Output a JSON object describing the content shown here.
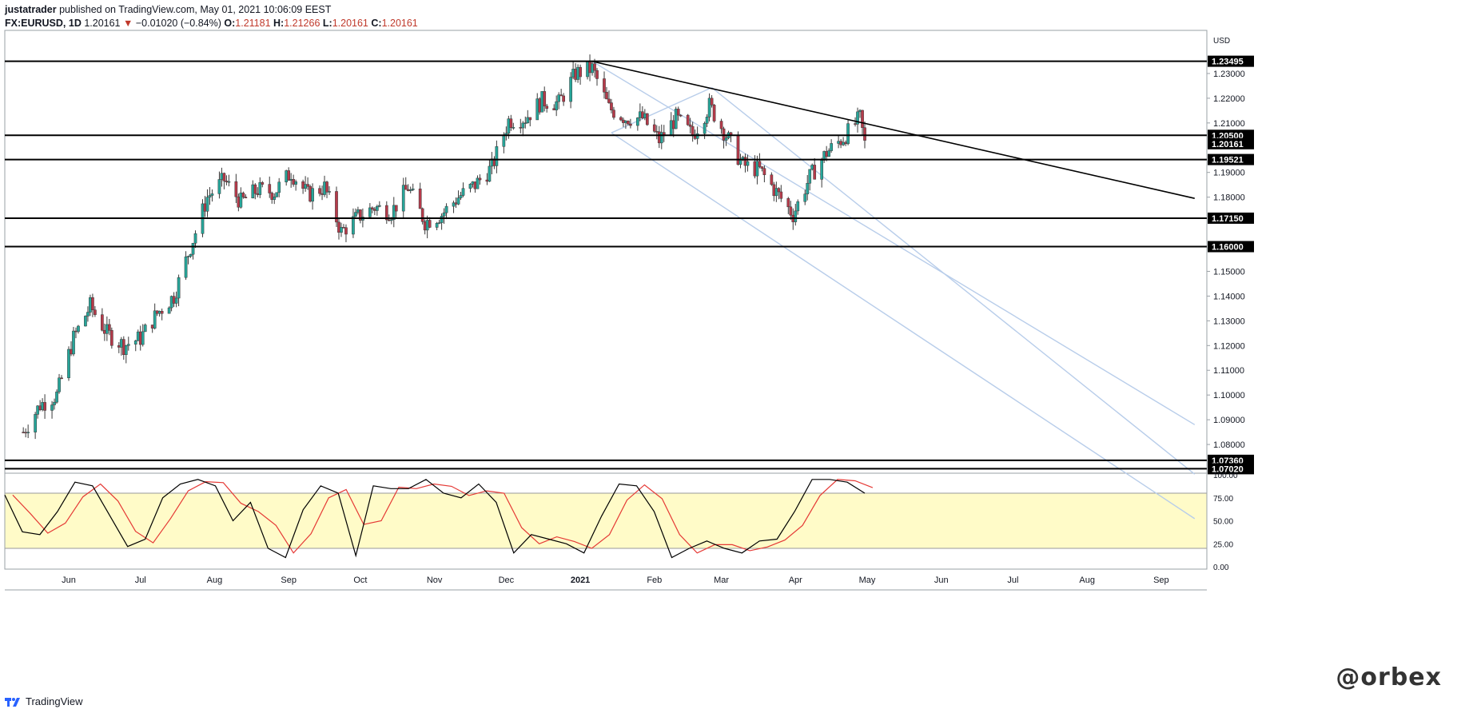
{
  "header": {
    "author": "justatrader",
    "published_text": "published on TradingView.com, May 01, 2021 10:06:09 EEST",
    "symbol": "FX:EURUSD, 1D",
    "last": "1.20161",
    "change_arrow": "▼",
    "change": "−0.01020 (−0.84%)",
    "ohlc": [
      {
        "label": "O:",
        "value": "1.21181"
      },
      {
        "label": "H:",
        "value": "1.21266"
      },
      {
        "label": "L:",
        "value": "1.20161"
      },
      {
        "label": "C:",
        "value": "1.20161"
      }
    ]
  },
  "footer": {
    "brand": "TradingView",
    "watermark": "@orbex",
    "logo_icon": "tradingview-logo-icon"
  },
  "colors": {
    "up": "#26a69a",
    "down": "#b53a4a",
    "channel": "#b8cdea",
    "stoch_k": "#000000",
    "stoch_d": "#e53935",
    "stoch_band": "#fffbc8"
  },
  "chart_data": [
    {
      "type": "candlestick",
      "currency": "USD",
      "x_ticks": [
        "Jun",
        "Jul",
        "Aug",
        "Sep",
        "Oct",
        "Nov",
        "Dec",
        "2021",
        "Feb",
        "Mar",
        "Apr",
        "May",
        "Jun",
        "Jul",
        "Aug",
        "Sep"
      ],
      "ylim": [
        1.07,
        1.24
      ],
      "y_ticks": [
        "1.23000",
        "1.22000",
        "1.21000",
        "1.19000",
        "1.18000",
        "1.15000",
        "1.14000",
        "1.13000",
        "1.12000",
        "1.11000",
        "1.10000",
        "1.09000",
        "1.08000"
      ],
      "horizontal_levels": [
        "1.23495",
        "1.20500",
        "1.19521",
        "1.17150",
        "1.16000",
        "1.07360",
        "1.07020"
      ],
      "current_price": "1.20161",
      "close_path": [
        {
          "date": "2020-05-13",
          "close": 1.085
        },
        {
          "date": "2020-05-20",
          "close": 1.096
        },
        {
          "date": "2020-05-27",
          "close": 1.1
        },
        {
          "date": "2020-06-03",
          "close": 1.123
        },
        {
          "date": "2020-06-10",
          "close": 1.136
        },
        {
          "date": "2020-06-17",
          "close": 1.125
        },
        {
          "date": "2020-06-24",
          "close": 1.12
        },
        {
          "date": "2020-07-01",
          "close": 1.123
        },
        {
          "date": "2020-07-08",
          "close": 1.133
        },
        {
          "date": "2020-07-15",
          "close": 1.14
        },
        {
          "date": "2020-07-22",
          "close": 1.16
        },
        {
          "date": "2020-07-29",
          "close": 1.18
        },
        {
          "date": "2020-08-05",
          "close": 1.187
        },
        {
          "date": "2020-08-12",
          "close": 1.178
        },
        {
          "date": "2020-08-19",
          "close": 1.183
        },
        {
          "date": "2020-08-26",
          "close": 1.182
        },
        {
          "date": "2020-09-02",
          "close": 1.19
        },
        {
          "date": "2020-09-09",
          "close": 1.181
        },
        {
          "date": "2020-09-16",
          "close": 1.184
        },
        {
          "date": "2020-09-23",
          "close": 1.166
        },
        {
          "date": "2020-09-30",
          "close": 1.172
        },
        {
          "date": "2020-10-07",
          "close": 1.176
        },
        {
          "date": "2020-10-14",
          "close": 1.174
        },
        {
          "date": "2020-10-21",
          "close": 1.184
        },
        {
          "date": "2020-10-28",
          "close": 1.17
        },
        {
          "date": "2020-11-04",
          "close": 1.173
        },
        {
          "date": "2020-11-11",
          "close": 1.18
        },
        {
          "date": "2020-11-18",
          "close": 1.185
        },
        {
          "date": "2020-11-25",
          "close": 1.192
        },
        {
          "date": "2020-12-02",
          "close": 1.211
        },
        {
          "date": "2020-12-09",
          "close": 1.212
        },
        {
          "date": "2020-12-16",
          "close": 1.219
        },
        {
          "date": "2020-12-23",
          "close": 1.218
        },
        {
          "date": "2020-12-30",
          "close": 1.23
        },
        {
          "date": "2021-01-06",
          "close": 1.232
        },
        {
          "date": "2021-01-13",
          "close": 1.216
        },
        {
          "date": "2021-01-20",
          "close": 1.212
        },
        {
          "date": "2021-01-27",
          "close": 1.212
        },
        {
          "date": "2021-02-03",
          "close": 1.203
        },
        {
          "date": "2021-02-10",
          "close": 1.212
        },
        {
          "date": "2021-02-17",
          "close": 1.205
        },
        {
          "date": "2021-02-24",
          "close": 1.217
        },
        {
          "date": "2021-03-03",
          "close": 1.205
        },
        {
          "date": "2021-03-10",
          "close": 1.193
        },
        {
          "date": "2021-03-17",
          "close": 1.191
        },
        {
          "date": "2021-03-24",
          "close": 1.182
        },
        {
          "date": "2021-03-31",
          "close": 1.173
        },
        {
          "date": "2021-04-07",
          "close": 1.188
        },
        {
          "date": "2021-04-14",
          "close": 1.198
        },
        {
          "date": "2021-04-21",
          "close": 1.204
        },
        {
          "date": "2021-04-28",
          "close": 1.212
        },
        {
          "date": "2021-04-30",
          "close": 1.2016
        }
      ],
      "trendline": [
        {
          "date": "2021-01-06",
          "price": 1.2349
        },
        {
          "date": "2021-09-15",
          "price": 1.1795
        }
      ],
      "channel_lines": [
        [
          {
            "date": "2021-01-06",
            "price": 1.2349
          },
          {
            "date": "2021-09-15",
            "price": 1.088
          }
        ],
        [
          {
            "date": "2021-02-25",
            "price": 1.2243
          },
          {
            "date": "2021-09-15",
            "price": 1.068
          }
        ],
        [
          {
            "date": "2021-01-14",
            "price": 1.206
          },
          {
            "date": "2021-09-15",
            "price": 1.05
          }
        ],
        [
          {
            "date": "2021-01-14",
            "price": 1.206
          },
          {
            "date": "2021-02-25",
            "price": 1.2243
          }
        ]
      ]
    },
    {
      "type": "line",
      "indicator": "stochastic",
      "ylim": [
        0,
        100
      ],
      "y_ticks": [
        "100.00",
        "75.00",
        "50.00",
        "25.00",
        "0.00"
      ],
      "band": [
        20,
        80
      ],
      "series": [
        {
          "values": [
            78,
            38,
            35,
            60,
            92,
            88,
            55,
            22,
            30,
            75,
            90,
            95,
            88,
            50,
            70,
            20,
            10,
            62,
            88,
            80,
            12,
            88,
            85,
            85,
            95,
            80,
            75,
            90,
            70,
            15,
            35,
            30,
            25,
            15,
            55,
            90,
            88,
            60,
            10,
            20,
            28,
            20,
            15,
            28,
            30,
            60,
            95,
            95,
            92,
            80
          ]
        }
      ]
    }
  ]
}
